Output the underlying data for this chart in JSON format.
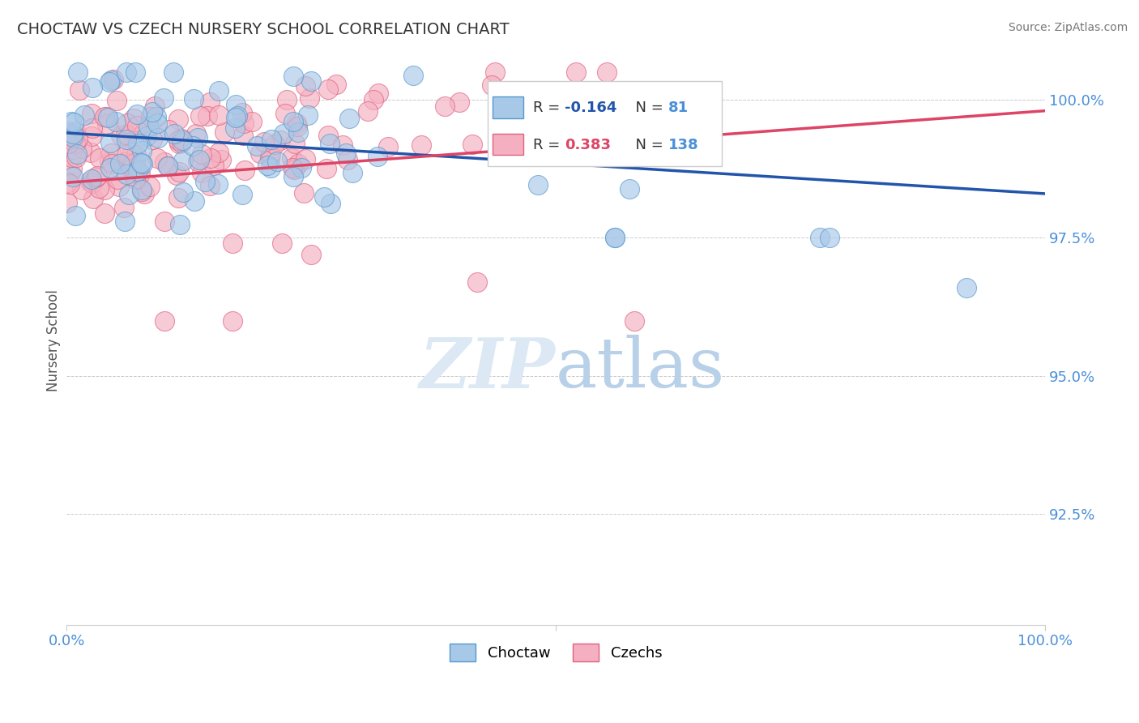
{
  "title": "CHOCTAW VS CZECH NURSERY SCHOOL CORRELATION CHART",
  "source": "Source: ZipAtlas.com",
  "ylabel": "Nursery School",
  "R_choctaw": -0.164,
  "N_choctaw": 81,
  "R_czech": 0.383,
  "N_czech": 138,
  "choctaw_color": "#a8c8e8",
  "czech_color": "#f4b0c0",
  "choctaw_edge_color": "#5599cc",
  "czech_edge_color": "#e06080",
  "choctaw_line_color": "#2255aa",
  "czech_line_color": "#dd4466",
  "xlim": [
    0.0,
    1.0
  ],
  "ylim": [
    0.905,
    1.008
  ],
  "yticks": [
    0.925,
    0.95,
    0.975,
    1.0
  ],
  "ytick_labels": [
    "92.5%",
    "95.0%",
    "97.5%",
    "100.0%"
  ],
  "xtick_labels": [
    "0.0%",
    "",
    "100.0%"
  ],
  "background_color": "#ffffff",
  "title_color": "#333333",
  "axis_label_color": "#4a90d9",
  "watermark_color": "#dde8f5",
  "seed": 7
}
